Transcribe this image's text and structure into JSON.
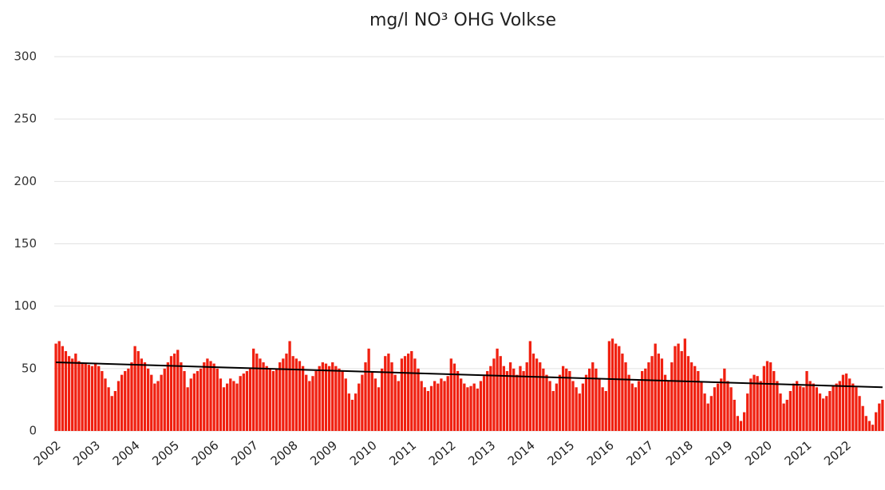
{
  "chart_data": {
    "type": "bar",
    "title": "mg/l NO³ OHG Volkse",
    "categories": [
      "2002",
      null,
      null,
      null,
      null,
      null,
      null,
      null,
      null,
      null,
      null,
      null,
      "2003",
      null,
      null,
      null,
      null,
      null,
      null,
      null,
      null,
      null,
      null,
      null,
      "2004",
      null,
      null,
      null,
      null,
      null,
      null,
      null,
      null,
      null,
      null,
      null,
      "2005",
      null,
      null,
      null,
      null,
      null,
      null,
      null,
      null,
      null,
      null,
      null,
      "2006",
      null,
      null,
      null,
      null,
      null,
      null,
      null,
      null,
      null,
      null,
      null,
      "2007",
      null,
      null,
      null,
      null,
      null,
      null,
      null,
      null,
      null,
      null,
      null,
      "2008",
      null,
      null,
      null,
      null,
      null,
      null,
      null,
      null,
      null,
      null,
      null,
      "2009",
      null,
      null,
      null,
      null,
      null,
      null,
      null,
      null,
      null,
      null,
      null,
      "2010",
      null,
      null,
      null,
      null,
      null,
      null,
      null,
      null,
      null,
      null,
      null,
      "2011",
      null,
      null,
      null,
      null,
      null,
      null,
      null,
      null,
      null,
      null,
      null,
      "2012",
      null,
      null,
      null,
      null,
      null,
      null,
      null,
      null,
      null,
      null,
      null,
      "2013",
      null,
      null,
      null,
      null,
      null,
      null,
      null,
      null,
      null,
      null,
      null,
      "2014",
      null,
      null,
      null,
      null,
      null,
      null,
      null,
      null,
      null,
      null,
      null,
      "2015",
      null,
      null,
      null,
      null,
      null,
      null,
      null,
      null,
      null,
      null,
      null,
      "2016",
      null,
      null,
      null,
      null,
      null,
      null,
      null,
      null,
      null,
      null,
      null,
      "2017",
      null,
      null,
      null,
      null,
      null,
      null,
      null,
      null,
      null,
      null,
      null,
      "2018",
      null,
      null,
      null,
      null,
      null,
      null,
      null,
      null,
      null,
      null,
      null,
      "2019",
      null,
      null,
      null,
      null,
      null,
      null,
      null,
      null,
      null,
      null,
      null,
      "2020",
      null,
      null,
      null,
      null,
      null,
      null,
      null,
      null,
      null,
      null,
      null,
      "2021",
      null,
      null,
      null,
      null,
      null,
      null,
      null,
      null,
      null,
      null,
      null,
      "2022",
      null,
      null,
      null,
      null,
      null,
      null,
      null,
      null,
      null,
      null,
      null
    ],
    "values": [
      70,
      72,
      68,
      64,
      60,
      58,
      62,
      56,
      55,
      54,
      53,
      52,
      54,
      52,
      48,
      42,
      35,
      28,
      32,
      40,
      45,
      48,
      50,
      55,
      68,
      64,
      58,
      55,
      50,
      45,
      38,
      40,
      45,
      50,
      55,
      60,
      62,
      65,
      55,
      48,
      35,
      42,
      46,
      48,
      50,
      55,
      58,
      56,
      54,
      50,
      42,
      35,
      38,
      42,
      40,
      38,
      44,
      46,
      48,
      50,
      66,
      62,
      58,
      55,
      52,
      50,
      48,
      50,
      55,
      58,
      62,
      72,
      60,
      58,
      56,
      52,
      45,
      40,
      44,
      48,
      52,
      55,
      54,
      52,
      55,
      52,
      50,
      48,
      42,
      30,
      25,
      30,
      38,
      45,
      55,
      66,
      48,
      42,
      35,
      50,
      60,
      62,
      55,
      45,
      40,
      58,
      60,
      62,
      64,
      58,
      50,
      40,
      35,
      32,
      36,
      40,
      38,
      42,
      40,
      44,
      58,
      54,
      48,
      42,
      38,
      35,
      36,
      38,
      34,
      40,
      44,
      48,
      52,
      58,
      66,
      60,
      52,
      48,
      55,
      50,
      45,
      52,
      48,
      55,
      72,
      62,
      58,
      55,
      50,
      45,
      40,
      32,
      38,
      45,
      52,
      50,
      48,
      40,
      35,
      30,
      38,
      45,
      50,
      55,
      50,
      42,
      35,
      32,
      72,
      74,
      70,
      68,
      62,
      55,
      45,
      38,
      35,
      40,
      48,
      50,
      55,
      60,
      70,
      62,
      58,
      45,
      40,
      55,
      68,
      70,
      64,
      74,
      60,
      55,
      52,
      48,
      40,
      30,
      22,
      28,
      35,
      38,
      42,
      50,
      40,
      35,
      25,
      12,
      8,
      15,
      30,
      42,
      45,
      44,
      40,
      52,
      56,
      55,
      48,
      40,
      30,
      22,
      25,
      32,
      38,
      40,
      36,
      35,
      48,
      40,
      38,
      35,
      30,
      26,
      28,
      32,
      36,
      38,
      40,
      45,
      46,
      42,
      38,
      35,
      28,
      20,
      12,
      8,
      5,
      15,
      22,
      25
    ],
    "color": "#f02010",
    "trendline": {
      "values": [
        55,
        35
      ],
      "color": "#000000"
    },
    "ylim": [
      0,
      300
    ],
    "yticks": [
      0,
      50,
      100,
      150,
      200,
      250,
      300
    ],
    "grid": true
  }
}
